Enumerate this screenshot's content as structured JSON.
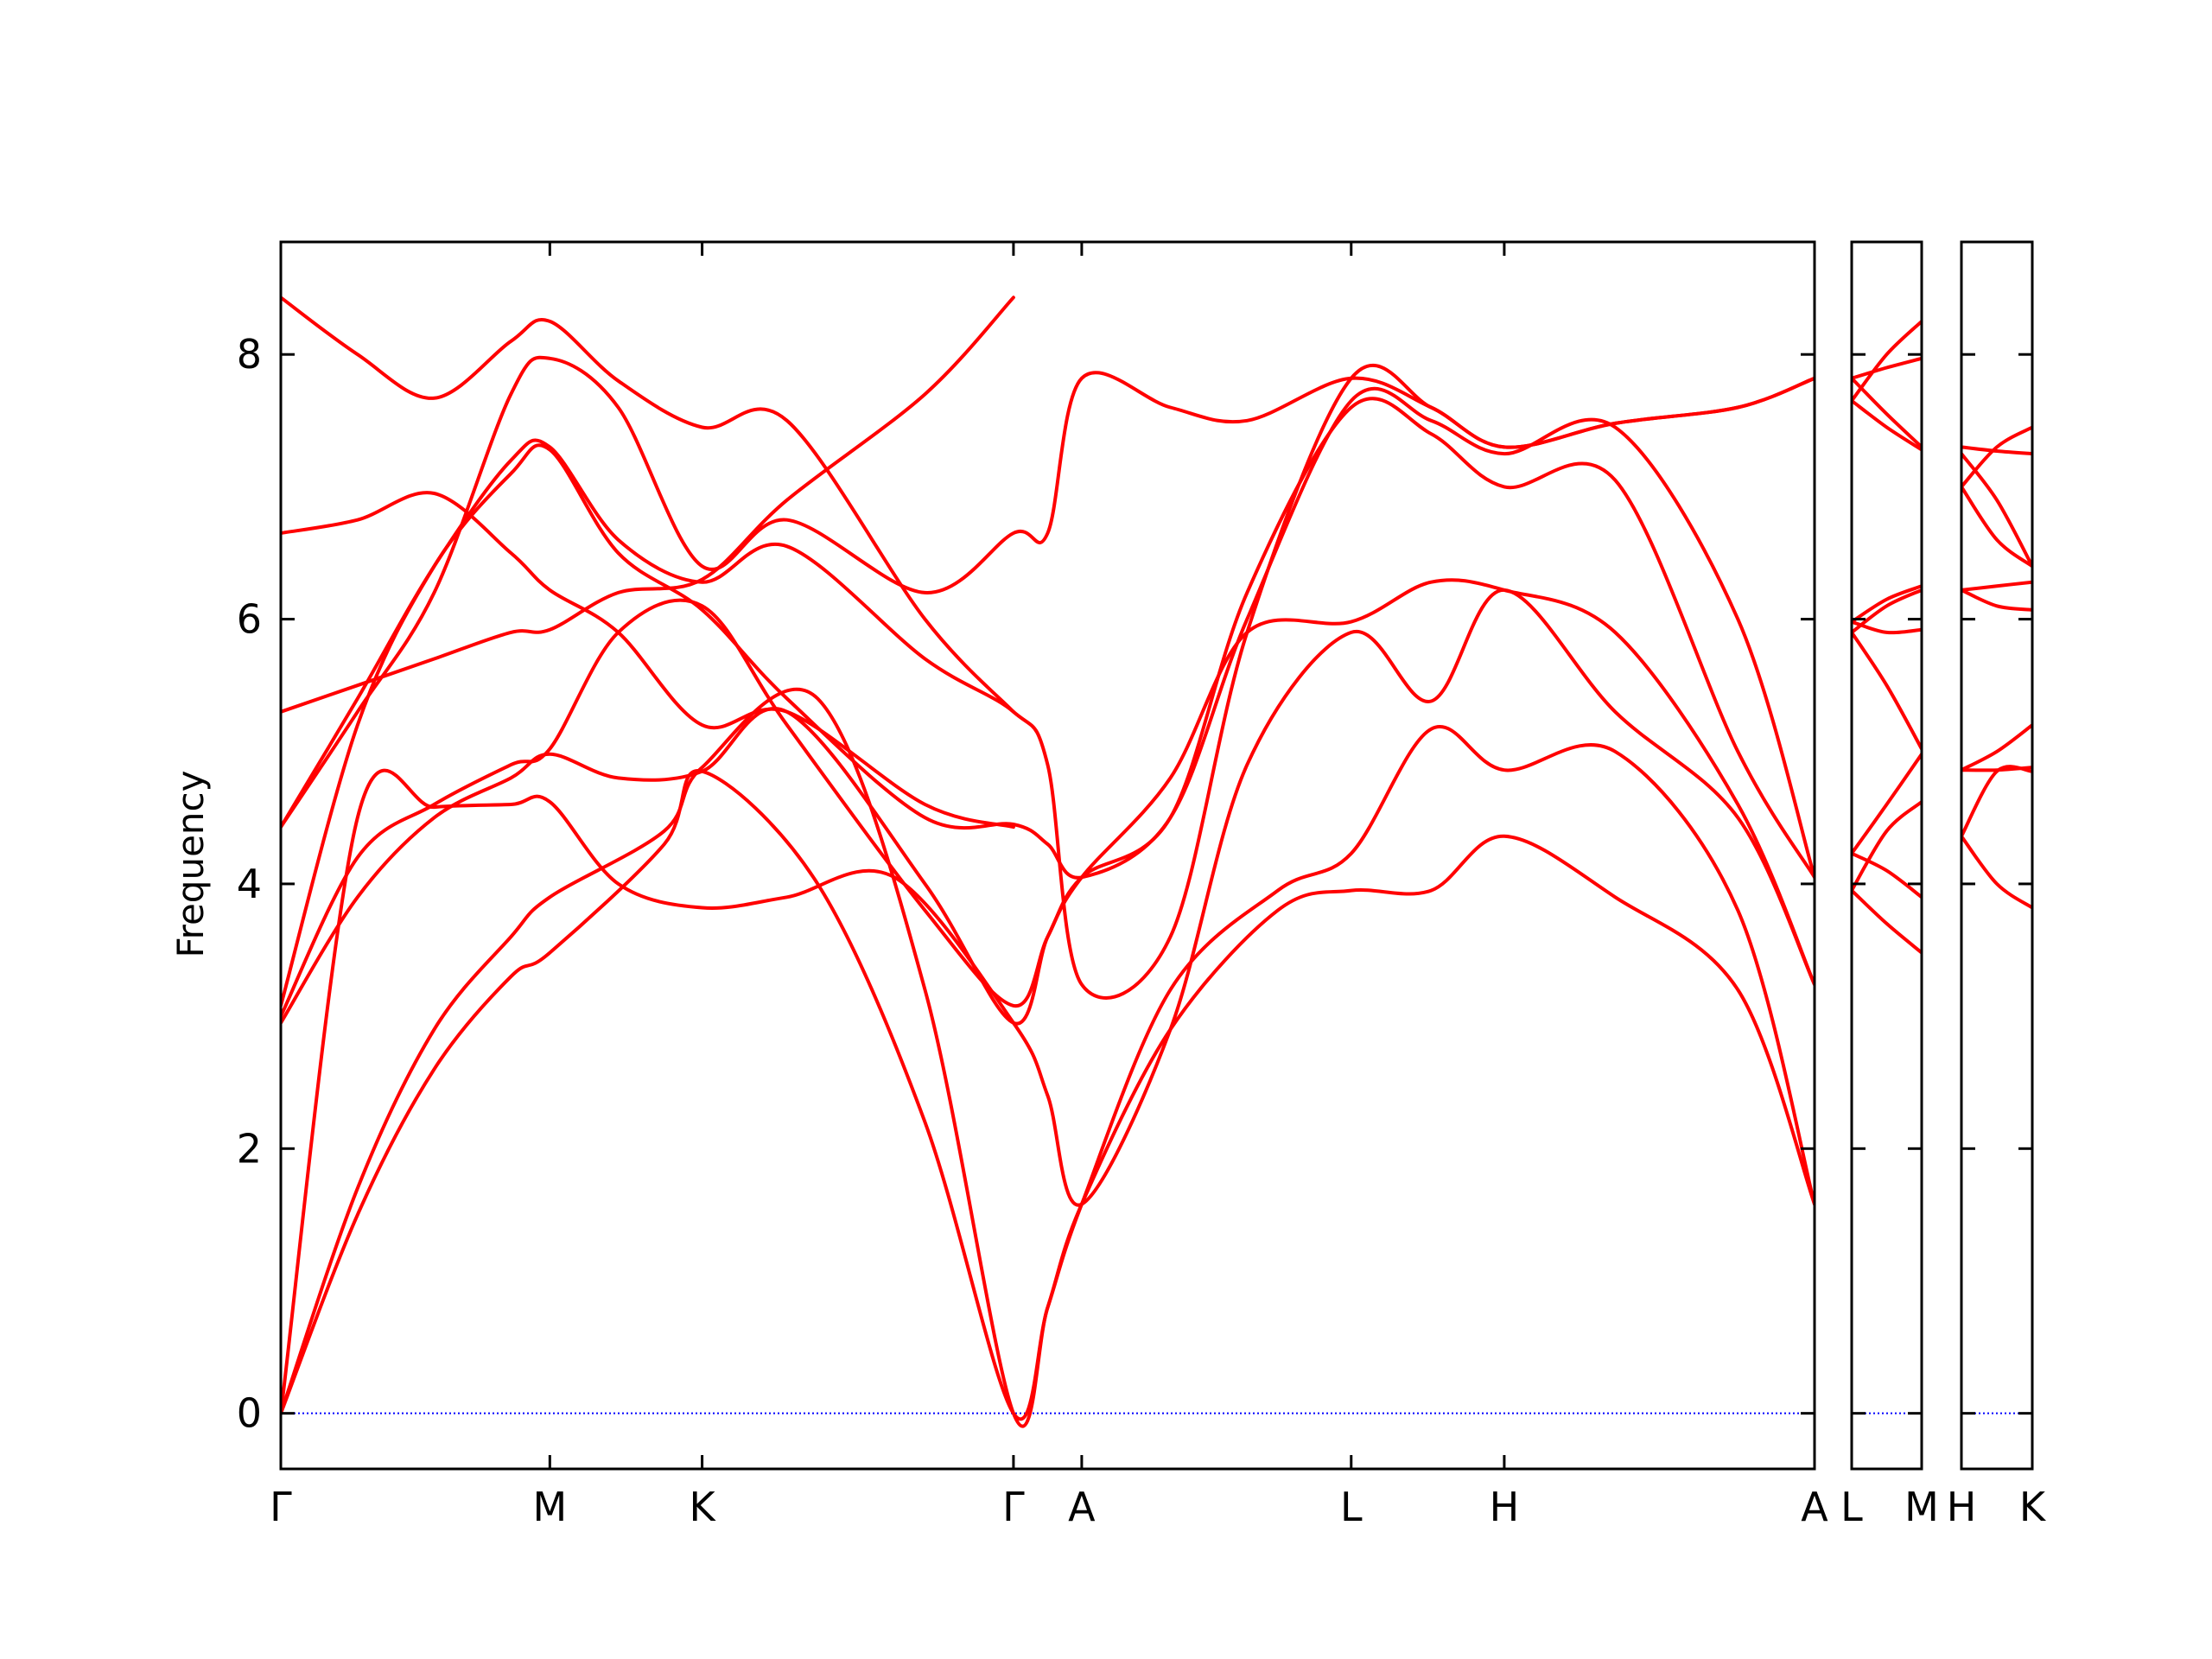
{
  "chart_data": {
    "type": "line",
    "ylabel": "Frequency",
    "ylim": [
      -0.42,
      8.85
    ],
    "yticks": [
      0,
      2,
      4,
      6,
      8
    ],
    "grid": false,
    "line_color": "#ff0000",
    "zero_line_color": "#0000ff",
    "panels": [
      {
        "xlim": [
          0,
          1
        ],
        "ticks": [
          {
            "x": 0,
            "label": "Γ"
          },
          {
            "x": 0.1754,
            "label": "M"
          },
          {
            "x": 0.2747,
            "label": "K"
          },
          {
            "x": 0.4777,
            "label": "Γ"
          },
          {
            "x": 0.5222,
            "label": "A"
          },
          {
            "x": 0.6979,
            "label": "L"
          },
          {
            "x": 0.7977,
            "label": "H"
          },
          {
            "x": 1,
            "label": "A"
          }
        ],
        "series": [
          {
            "x": [
              0,
              0.05,
              0.1,
              0.15,
              0.1754,
              0.25,
              0.2747,
              0.35,
              0.42,
              0.4777,
              0.5,
              0.5222,
              0.58,
              0.65,
              0.6979,
              0.75,
              0.7977,
              0.87,
              0.95,
              1
            ],
            "y": [
              0,
              1.5,
              2.6,
              3.3,
              3.48,
              4.3,
              4.85,
              4.0,
              2.2,
              0,
              0.8,
              1.58,
              2.9,
              3.8,
              3.95,
              3.95,
              4.36,
              3.9,
              3.2,
              1.58
            ]
          },
          {
            "x": [
              0,
              0.05,
              0.1,
              0.15,
              0.1754,
              0.25,
              0.2747,
              0.35,
              0.42,
              0.4777,
              0.5,
              0.5222,
              0.58,
              0.65,
              0.6979,
              0.75,
              0.7977,
              0.87,
              0.95,
              1
            ],
            "y": [
              0,
              1.7,
              2.9,
              3.6,
              3.9,
              4.4,
              4.88,
              5.4,
              3.2,
              0,
              0.8,
              1.58,
              3.2,
              3.95,
              4.23,
              5.17,
              4.86,
              5.0,
              3.8,
              1.58
            ]
          },
          {
            "x": [
              0,
              0.05,
              0.1,
              0.15,
              0.1754,
              0.22,
              0.2747,
              0.33,
              0.4,
              0.4777,
              0.5,
              0.5222,
              0.58,
              0.63,
              0.6979,
              0.75,
              0.7977,
              0.87,
              0.95,
              1
            ],
            "y": [
              0,
              4.5,
              4.58,
              4.6,
              4.62,
              4.0,
              3.82,
              3.9,
              4.05,
              2.95,
              2.4,
              1.58,
              2.9,
              4.9,
              5.9,
              5.38,
              6.22,
              5.3,
              4.5,
              3.24
            ]
          },
          {
            "x": [
              0,
              0.05,
              0.1,
              0.15,
              0.1754,
              0.22,
              0.2747,
              0.33,
              0.42,
              0.4777,
              0.5,
              0.5222,
              0.58,
              0.63,
              0.6979,
              0.75,
              0.7977,
              0.87,
              0.95,
              1
            ],
            "y": [
              2.95,
              3.9,
              4.5,
              4.8,
              4.98,
              4.8,
              4.85,
              5.3,
              4.0,
              2.95,
              3.6,
              4.05,
              4.8,
              5.9,
              5.98,
              6.28,
              6.22,
              5.9,
              4.6,
              3.24
            ]
          },
          {
            "x": [
              0,
              0.05,
              0.1,
              0.15,
              0.1754,
              0.22,
              0.2747,
              0.33,
              0.42,
              0.4777,
              0.5,
              0.5222,
              0.58,
              0.63,
              0.6979,
              0.75,
              0.7977,
              0.87,
              0.95,
              1
            ],
            "y": [
              3.0,
              4.2,
              4.6,
              4.9,
              5.02,
              5.9,
              6.1,
              5.2,
              3.8,
              3.08,
              3.6,
              4.05,
              4.5,
              6.2,
              7.6,
              7.4,
              7.0,
              7.05,
              5.0,
              4.05
            ]
          },
          {
            "x": [
              0,
              0.05,
              0.1,
              0.15,
              0.1754,
              0.22,
              0.2747,
              0.33,
              0.42,
              0.4777,
              0.5,
              0.5222,
              0.58,
              0.63,
              0.6979,
              0.75,
              0.7977,
              0.87,
              0.95,
              1
            ],
            "y": [
              3.08,
              5.2,
              6.4,
              7.1,
              7.28,
              6.5,
              6.07,
              5.4,
              4.5,
              4.45,
              4.3,
              4.05,
              4.5,
              6.0,
              7.65,
              7.5,
              7.25,
              7.45,
              6.0,
              4.05
            ]
          },
          {
            "x": [
              0,
              0.05,
              0.1,
              0.15,
              0.1754,
              0.22,
              0.2747,
              0.33,
              0.42,
              0.4777,
              0.5,
              0.5222,
              0.58,
              0.63,
              0.6979,
              0.75,
              0.7977,
              0.87,
              0.95,
              1
            ],
            "y": [
              4.43,
              5.4,
              6.4,
              7.2,
              7.3,
              6.6,
              6.28,
              6.55,
              5.7,
              5.3,
              4.9,
              3.24,
              3.6,
              5.9,
              7.82,
              7.6,
              7.3,
              7.48,
              7.6,
              7.82
            ]
          },
          {
            "x": [
              0,
              0.05,
              0.1,
              0.15,
              0.1754,
              0.22,
              0.2747,
              0.33,
              0.42,
              0.4777,
              0.5,
              0.5222,
              0.58,
              0.63,
              0.6979,
              0.75,
              0.7977,
              0.87,
              0.95,
              1
            ],
            "y": [
              4.43,
              5.3,
              6.2,
              7.7,
              7.97,
              7.6,
              6.4,
              6.75,
              6.2,
              6.65,
              6.65,
              7.82,
              7.6,
              7.5,
              7.82,
              7.6,
              7.3,
              7.48,
              7.6,
              7.82
            ]
          },
          {
            "x": [
              0,
              0.05,
              0.1,
              0.15,
              0.1754,
              0.22,
              0.2747,
              0.33,
              0.42,
              0.4777
            ],
            "y": [
              5.3,
              5.5,
              5.7,
              5.9,
              5.92,
              6.2,
              6.3,
              6.9,
              7.7,
              8.43
            ]
          },
          {
            "x": [
              0,
              0.05,
              0.1,
              0.15,
              0.1754,
              0.22,
              0.2747,
              0.33,
              0.42,
              0.4777
            ],
            "y": [
              6.65,
              6.75,
              6.95,
              6.5,
              6.22,
              5.9,
              5.2,
              5.3,
              4.6,
              4.43
            ]
          },
          {
            "x": [
              0,
              0.05,
              0.1,
              0.15,
              0.1754,
              0.22,
              0.2747,
              0.33,
              0.42,
              0.4777
            ],
            "y": [
              8.43,
              8.0,
              7.67,
              8.1,
              8.25,
              7.8,
              7.45,
              7.5,
              6.0,
              5.3
            ]
          }
        ]
      },
      {
        "xlim": [
          0,
          1
        ],
        "ticks": [
          {
            "x": 0,
            "label": "L"
          },
          {
            "x": 1,
            "label": "M"
          }
        ],
        "series": [
          {
            "x": [
              0,
              0.5,
              1
            ],
            "y": [
              3.95,
              3.7,
              3.48
            ]
          },
          {
            "x": [
              0,
              0.5,
              1
            ],
            "y": [
              4.23,
              4.1,
              3.9
            ]
          },
          {
            "x": [
              0,
              0.5,
              1
            ],
            "y": [
              3.95,
              4.4,
              4.62
            ]
          },
          {
            "x": [
              0,
              0.5,
              1
            ],
            "y": [
              4.23,
              4.6,
              4.98
            ]
          },
          {
            "x": [
              0,
              0.5,
              1
            ],
            "y": [
              5.9,
              5.5,
              5.02
            ]
          },
          {
            "x": [
              0,
              0.5,
              1
            ],
            "y": [
              5.98,
              5.9,
              5.92
            ]
          },
          {
            "x": [
              0,
              0.5,
              1
            ],
            "y": [
              5.9,
              6.1,
              6.22
            ]
          },
          {
            "x": [
              0,
              0.5,
              1
            ],
            "y": [
              5.98,
              6.15,
              6.25
            ]
          },
          {
            "x": [
              0,
              0.5,
              1
            ],
            "y": [
              7.65,
              7.45,
              7.28
            ]
          },
          {
            "x": [
              0,
              0.5,
              1
            ],
            "y": [
              7.82,
              7.55,
              7.3
            ]
          },
          {
            "x": [
              0,
              0.5,
              1
            ],
            "y": [
              7.82,
              7.9,
              7.97
            ]
          },
          {
            "x": [
              0,
              0.5,
              1
            ],
            "y": [
              7.65,
              8.0,
              8.25
            ]
          }
        ]
      },
      {
        "xlim": [
          0,
          1
        ],
        "ticks": [
          {
            "x": 0,
            "label": "H"
          },
          {
            "x": 1,
            "label": "K"
          }
        ],
        "series": [
          {
            "x": [
              0,
              0.5,
              1
            ],
            "y": [
              4.36,
              4.0,
              3.82
            ]
          },
          {
            "x": [
              0,
              0.5,
              1
            ],
            "y": [
              4.36,
              4.85,
              4.85
            ]
          },
          {
            "x": [
              0,
              0.5,
              1
            ],
            "y": [
              4.86,
              4.86,
              4.88
            ]
          },
          {
            "x": [
              0,
              0.5,
              1
            ],
            "y": [
              4.86,
              5.0,
              5.2
            ]
          },
          {
            "x": [
              0,
              0.5,
              1
            ],
            "y": [
              6.22,
              6.1,
              6.07
            ]
          },
          {
            "x": [
              0,
              0.5,
              1
            ],
            "y": [
              6.22,
              6.25,
              6.28
            ]
          },
          {
            "x": [
              0,
              0.5,
              1
            ],
            "y": [
              7.0,
              6.6,
              6.4
            ]
          },
          {
            "x": [
              0,
              0.5,
              1
            ],
            "y": [
              7.25,
              6.9,
              6.4
            ]
          },
          {
            "x": [
              0,
              0.5,
              1
            ],
            "y": [
              7.0,
              7.3,
              7.45
            ]
          },
          {
            "x": [
              0,
              0.5,
              1
            ],
            "y": [
              7.3,
              7.27,
              7.25
            ]
          }
        ]
      }
    ]
  }
}
